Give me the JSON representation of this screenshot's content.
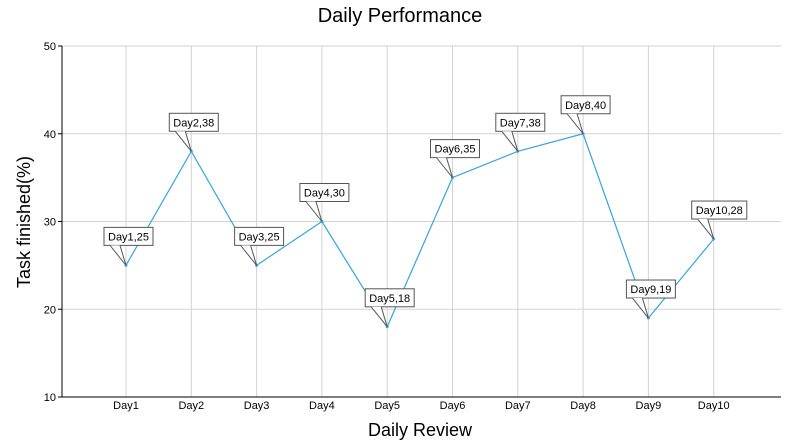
{
  "chart_data": {
    "type": "line",
    "title": "Daily Performance",
    "xlabel": "Daily Review",
    "ylabel": "Task finished(%)",
    "categories": [
      "Day1",
      "Day2",
      "Day3",
      "Day4",
      "Day5",
      "Day6",
      "Day7",
      "Day8",
      "Day9",
      "Day10"
    ],
    "values": [
      25,
      38,
      25,
      30,
      18,
      35,
      38,
      40,
      19,
      28
    ],
    "data_labels": [
      "Day1,25",
      "Day2,38",
      "Day3,25",
      "Day4,30",
      "Day5,18",
      "Day6,35",
      "Day7,38",
      "Day8,40",
      "Day9,19",
      "Day10,28"
    ],
    "ylim": [
      10,
      50
    ],
    "yticks": [
      "10",
      "20",
      "30",
      "40",
      "50"
    ],
    "grid": true,
    "line_color": "#3ba4d8"
  }
}
